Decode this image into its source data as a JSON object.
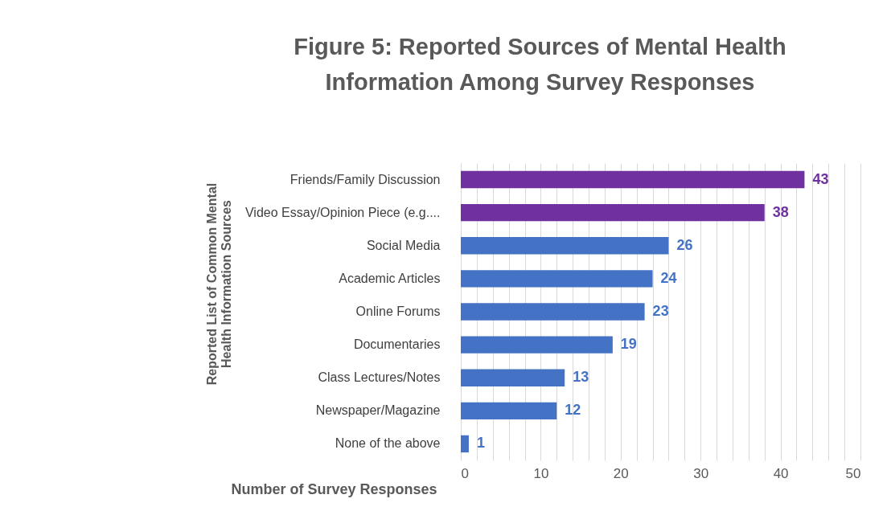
{
  "chart_data": {
    "type": "bar",
    "orientation": "horizontal",
    "title": "Figure 5: Reported Sources of Mental Health Information Among Survey Responses",
    "xlabel": "Number of Survey Responses",
    "ylabel": "Reported List of Common Mental Health Information Sources",
    "categories": [
      "Friends/Family Discussion",
      "Video Essay/Opinion Piece (e.g....",
      "Social Media",
      "Academic Articles",
      "Online Forums",
      "Documentaries",
      "Class Lectures/Notes",
      "Newspaper/Magazine",
      "None of the above"
    ],
    "values": [
      43,
      38,
      26,
      24,
      23,
      19,
      13,
      12,
      1
    ],
    "colors": [
      "#7030a0",
      "#7030a0",
      "#4472c4",
      "#4472c4",
      "#4472c4",
      "#4472c4",
      "#4472c4",
      "#4472c4",
      "#4472c4"
    ],
    "xlim": [
      0,
      50
    ],
    "xticks": [
      0,
      {
        "value": 2,
        "label": null
      },
      {
        "value": 4,
        "label": null
      },
      {
        "value": 6,
        "label": null
      },
      {
        "value": 8,
        "label": null
      },
      10,
      {
        "value": 12,
        "label": null
      },
      {
        "value": 14,
        "label": null
      },
      {
        "value": 16,
        "label": null
      },
      {
        "value": 18,
        "label": null
      },
      20,
      {
        "value": 22,
        "label": null
      },
      {
        "value": 24,
        "label": null
      },
      {
        "value": 26,
        "label": null
      },
      {
        "value": 28,
        "label": null
      },
      30,
      {
        "value": 32,
        "label": null
      },
      {
        "value": 34,
        "label": null
      },
      {
        "value": 36,
        "label": null
      },
      {
        "value": 38,
        "label": null
      },
      40,
      {
        "value": 42,
        "label": null
      },
      {
        "value": 44,
        "label": null
      },
      {
        "value": 46,
        "label": null
      },
      {
        "value": 48,
        "label": null
      },
      50
    ],
    "grid": "x",
    "data_labels": true
  }
}
